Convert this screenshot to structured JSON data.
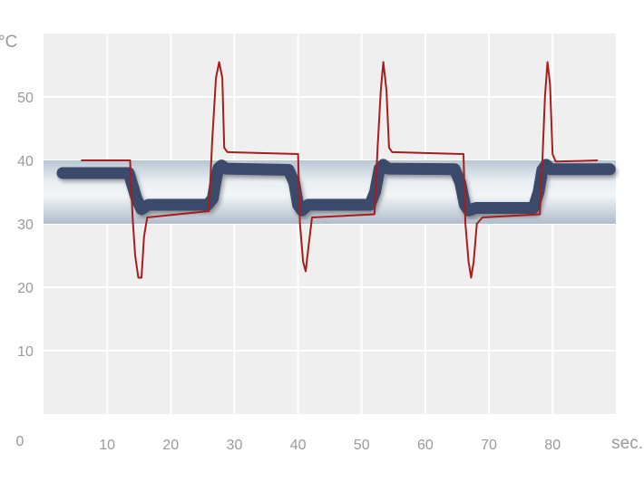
{
  "chart_data": {
    "type": "line",
    "xlabel": "sec.",
    "ylabel": "°C",
    "xlim": [
      0,
      90
    ],
    "ylim": [
      0,
      60
    ],
    "x_ticks": [
      10,
      20,
      30,
      40,
      50,
      60,
      70,
      80
    ],
    "y_ticks": [
      10,
      20,
      30,
      40,
      50
    ],
    "y_origin_label": "0",
    "grid": true,
    "band": {
      "from": 30,
      "to": 40
    },
    "series": [
      {
        "color": "#a81d1b",
        "style": "thin",
        "points": [
          [
            6,
            40
          ],
          [
            13.6,
            40
          ],
          [
            14,
            31
          ],
          [
            14.4,
            25
          ],
          [
            14.9,
            21.5
          ],
          [
            15.4,
            21.5
          ],
          [
            15.8,
            28
          ],
          [
            16.3,
            31
          ],
          [
            26,
            32
          ],
          [
            26.5,
            43
          ],
          [
            27.1,
            53
          ],
          [
            27.6,
            55.5
          ],
          [
            28.1,
            53
          ],
          [
            28.4,
            42
          ],
          [
            28.9,
            41.3
          ],
          [
            40,
            41
          ],
          [
            40.3,
            30
          ],
          [
            40.8,
            24
          ],
          [
            41.2,
            22.5
          ],
          [
            41.6,
            26
          ],
          [
            42.2,
            31
          ],
          [
            52,
            31.5
          ],
          [
            52.5,
            42
          ],
          [
            53,
            51
          ],
          [
            53.4,
            55.5
          ],
          [
            53.9,
            51
          ],
          [
            54.3,
            42
          ],
          [
            54.8,
            41.3
          ],
          [
            66,
            41
          ],
          [
            66.3,
            30
          ],
          [
            66.8,
            24
          ],
          [
            67.2,
            21.5
          ],
          [
            67.6,
            24
          ],
          [
            68.1,
            30
          ],
          [
            69,
            31
          ],
          [
            78,
            31.5
          ],
          [
            78.4,
            40
          ],
          [
            78.8,
            50
          ],
          [
            79.2,
            55.5
          ],
          [
            79.6,
            52
          ],
          [
            80,
            41
          ],
          [
            80.5,
            39.8
          ],
          [
            87,
            40
          ]
        ]
      },
      {
        "color": "#3a4a6b",
        "style": "thick",
        "points": [
          [
            3,
            38
          ],
          [
            13.4,
            38
          ],
          [
            14.6,
            34
          ],
          [
            15.4,
            32.3
          ],
          [
            16.5,
            33
          ],
          [
            25.8,
            33
          ],
          [
            26.6,
            34
          ],
          [
            27.1,
            37
          ],
          [
            27.5,
            38.8
          ],
          [
            28,
            39.2
          ],
          [
            28.6,
            38.7
          ],
          [
            38.5,
            38.5
          ],
          [
            39.4,
            36.5
          ],
          [
            40,
            33
          ],
          [
            40.6,
            32.1
          ],
          [
            41.6,
            33
          ],
          [
            51.3,
            33
          ],
          [
            52.1,
            35
          ],
          [
            52.8,
            38.7
          ],
          [
            53.4,
            39.3
          ],
          [
            54.1,
            38.7
          ],
          [
            64.6,
            38.6
          ],
          [
            65.5,
            36.5
          ],
          [
            66.2,
            33
          ],
          [
            66.8,
            32.1
          ],
          [
            68,
            32.5
          ],
          [
            77,
            32.5
          ],
          [
            77.8,
            35
          ],
          [
            78.4,
            38.5
          ],
          [
            79,
            39.3
          ],
          [
            79.7,
            38.6
          ],
          [
            89,
            38.6
          ]
        ]
      }
    ]
  }
}
